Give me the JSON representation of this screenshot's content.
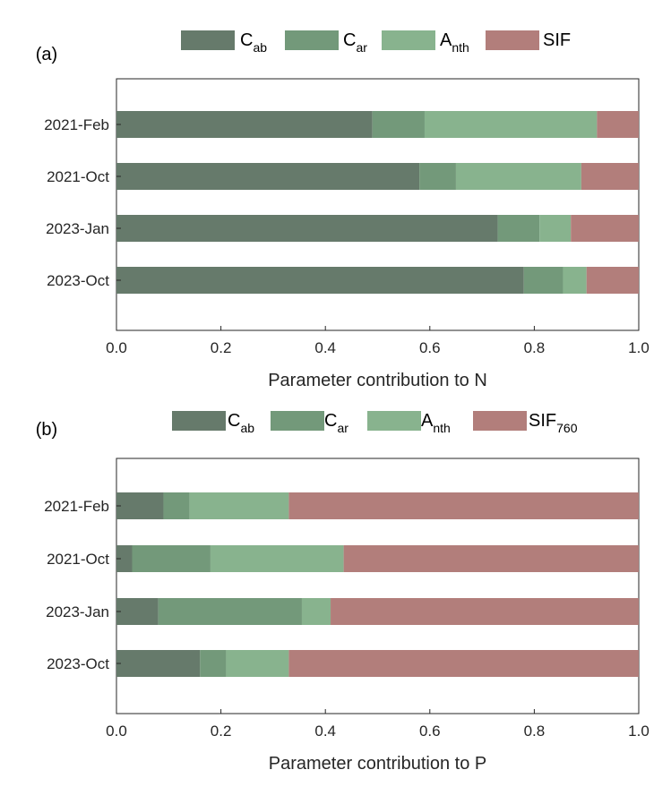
{
  "chart_data": [
    {
      "type": "bar",
      "orientation": "horizontal",
      "stacked": true,
      "panel_label": "(a)",
      "categories": [
        "2021-Feb",
        "2021-Oct",
        "2023-Jan",
        "2023-Oct"
      ],
      "series": [
        {
          "name": "Cab",
          "name_base": "C",
          "name_sub": "ab",
          "color": "#667a6b",
          "values": [
            0.49,
            0.58,
            0.73,
            0.78
          ]
        },
        {
          "name": "Car",
          "name_base": "C",
          "name_sub": "ar",
          "color": "#73997a",
          "values": [
            0.1,
            0.07,
            0.08,
            0.075
          ]
        },
        {
          "name": "Anth",
          "name_base": "A",
          "name_sub": "nth",
          "color": "#88b38e",
          "values": [
            0.33,
            0.24,
            0.06,
            0.045
          ]
        },
        {
          "name": "SIF",
          "name_base": "SIF",
          "name_sub": "",
          "color": "#b27e7b",
          "values": [
            0.08,
            0.11,
            0.13,
            0.1
          ]
        }
      ],
      "xlim": [
        0,
        1
      ],
      "xticks": [
        "0.0",
        "0.2",
        "0.4",
        "0.6",
        "0.8",
        "1.0"
      ],
      "xlabel": "Parameter contribution to N",
      "ylabel": "",
      "legend_position": "top"
    },
    {
      "type": "bar",
      "orientation": "horizontal",
      "stacked": true,
      "panel_label": "(b)",
      "categories": [
        "2021-Feb",
        "2021-Oct",
        "2023-Jan",
        "2023-Oct"
      ],
      "series": [
        {
          "name": "Cab",
          "name_base": "C",
          "name_sub": "ab",
          "color": "#667a6b",
          "values": [
            0.09,
            0.03,
            0.08,
            0.16
          ]
        },
        {
          "name": "Car",
          "name_base": "C",
          "name_sub": "ar",
          "color": "#73997a",
          "values": [
            0.05,
            0.15,
            0.275,
            0.05
          ]
        },
        {
          "name": "Anth",
          "name_base": "A",
          "name_sub": "nth",
          "color": "#88b38e",
          "values": [
            0.19,
            0.255,
            0.055,
            0.12
          ]
        },
        {
          "name": "SIF760",
          "name_base": "SIF",
          "name_sub": "760",
          "color": "#b27e7b",
          "values": [
            0.67,
            0.565,
            0.59,
            0.67
          ]
        }
      ],
      "xlim": [
        0,
        1
      ],
      "xticks": [
        "0.0",
        "0.2",
        "0.4",
        "0.6",
        "0.8",
        "1.0"
      ],
      "xlabel": "Parameter contribution to P",
      "ylabel": "",
      "legend_position": "top"
    }
  ]
}
